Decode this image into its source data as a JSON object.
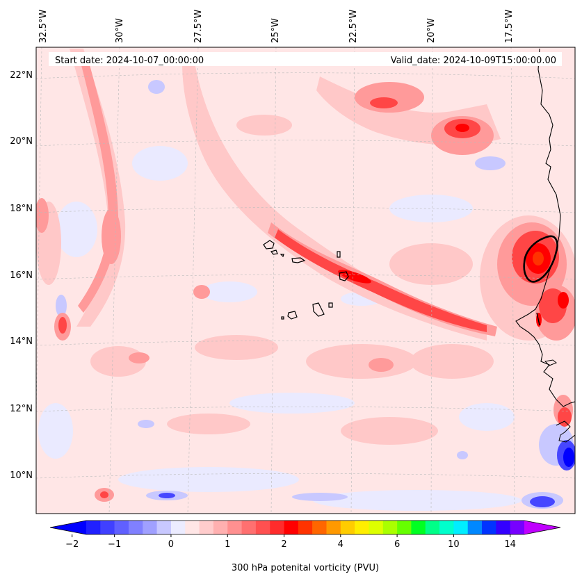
{
  "header": {
    "start_date": "Start date: 2024-10-07_00:00:00",
    "valid_date": "Valid_date: 2024-10-09T15:00:00.00"
  },
  "map": {
    "projection": "lambert-conformal",
    "lon_range": [
      -33.5,
      -15.8
    ],
    "lat_range": [
      8.8,
      22.8
    ],
    "lon_labels": [
      "32.5°W",
      "30°W",
      "27.5°W",
      "25°W",
      "22.5°W",
      "20°W",
      "17.5°W"
    ],
    "lat_labels": [
      "22°N",
      "20°N",
      "18°N",
      "16°N",
      "14°N",
      "12°N",
      "10°N"
    ],
    "gridlines": "dashed light gray",
    "features": [
      "coastline-west-africa",
      "cape-verde-islands",
      "pv-contour-thick"
    ],
    "field_colors": {
      "background": "#ffe6e6",
      "light_pink": "#ffc8c8",
      "pink": "#ff9a9a",
      "red": "#ff4646",
      "deep_red": "#ff0000",
      "light_blue": "#e6e6ff",
      "blue": "#4646ff",
      "deep_blue": "#0000ff"
    }
  },
  "colorbar": {
    "label": "300 hPa potenital vorticity (PVU)",
    "ticks": [
      "−2",
      "−1",
      "0",
      "1",
      "2",
      "4",
      "6",
      "10",
      "14"
    ],
    "colors": [
      "#2020ff",
      "#4040ff",
      "#6060ff",
      "#8080ff",
      "#a0a0ff",
      "#c8c8ff",
      "#ececff",
      "#ffe6e6",
      "#ffcccc",
      "#ffb0b0",
      "#ff9090",
      "#ff7070",
      "#ff5050",
      "#ff2c2c",
      "#ff0000",
      "#ff3300",
      "#ff6600",
      "#ff9900",
      "#ffcc00",
      "#ffee00",
      "#ddff00",
      "#aaff00",
      "#66ff00",
      "#00ff22",
      "#00ff88",
      "#00ffcc",
      "#00eeff",
      "#0088ff",
      "#0033ff",
      "#3300ff",
      "#7700ff"
    ],
    "under_color": "#0000ff",
    "over_color": "#c000ff"
  }
}
